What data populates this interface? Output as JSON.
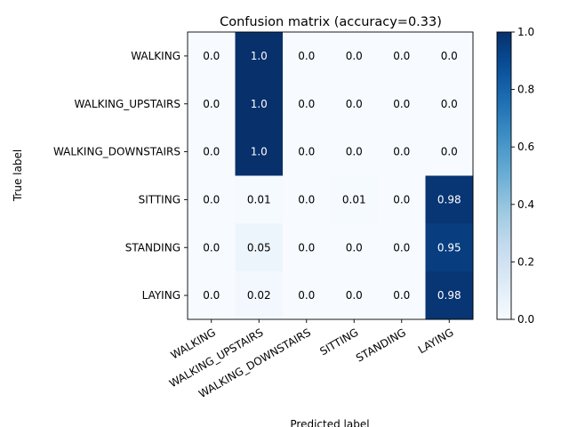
{
  "chart_data": {
    "type": "heatmap",
    "title": "Confusion matrix (accuracy=0.33)",
    "xlabel": "Predicted label",
    "ylabel": "True label",
    "row_labels": [
      "WALKING",
      "WALKING_UPSTAIRS",
      "WALKING_DOWNSTAIRS",
      "SITTING",
      "STANDING",
      "LAYING"
    ],
    "col_labels": [
      "WALKING",
      "WALKING_UPSTAIRS",
      "WALKING_DOWNSTAIRS",
      "SITTING",
      "STANDING",
      "LAYING"
    ],
    "values": [
      [
        0.0,
        1.0,
        0.0,
        0.0,
        0.0,
        0.0
      ],
      [
        0.0,
        1.0,
        0.0,
        0.0,
        0.0,
        0.0
      ],
      [
        0.0,
        1.0,
        0.0,
        0.0,
        0.0,
        0.0
      ],
      [
        0.0,
        0.01,
        0.0,
        0.01,
        0.0,
        0.98
      ],
      [
        0.0,
        0.05,
        0.0,
        0.0,
        0.0,
        0.95
      ],
      [
        0.0,
        0.02,
        0.0,
        0.0,
        0.0,
        0.98
      ]
    ],
    "cell_labels": [
      [
        "0.0",
        "1.0",
        "0.0",
        "0.0",
        "0.0",
        "0.0"
      ],
      [
        "0.0",
        "1.0",
        "0.0",
        "0.0",
        "0.0",
        "0.0"
      ],
      [
        "0.0",
        "1.0",
        "0.0",
        "0.0",
        "0.0",
        "0.0"
      ],
      [
        "0.0",
        "0.01",
        "0.0",
        "0.01",
        "0.0",
        "0.98"
      ],
      [
        "0.0",
        "0.05",
        "0.0",
        "0.0",
        "0.0",
        "0.95"
      ],
      [
        "0.0",
        "0.02",
        "0.0",
        "0.0",
        "0.0",
        "0.98"
      ]
    ],
    "colorbar": {
      "colormap": "Blues",
      "range": [
        0.0,
        1.0
      ],
      "ticks": [
        0.0,
        0.2,
        0.4,
        0.6,
        0.8,
        1.0
      ],
      "tick_labels": [
        "0.0",
        "0.2",
        "0.4",
        "0.6",
        "0.8",
        "1.0"
      ]
    },
    "text_colors": {
      "dark_cell": "#ffffff",
      "light_cell": "#000000"
    },
    "xtick_rotation_deg": 30
  }
}
